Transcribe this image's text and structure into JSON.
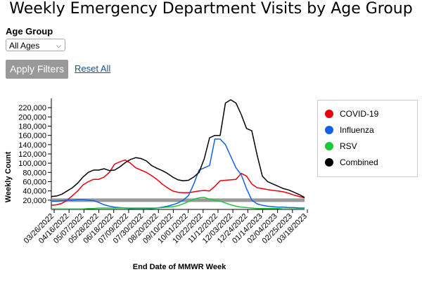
{
  "page": {
    "title": "Weekly Emergency Department Visits by Age Group"
  },
  "filters": {
    "age_group_label": "Age Group",
    "age_group_selected": "All Ages",
    "apply_label": "Apply Filters",
    "reset_label": "Reset All"
  },
  "chart_data": {
    "type": "line",
    "title": "",
    "xlabel": "End Date of MMWR Week",
    "ylabel": "Weekly Count",
    "ylim": [
      0,
      240000
    ],
    "yticks": [
      "20,000",
      "40,000",
      "60,000",
      "80,000",
      "100,000",
      "120,000",
      "140,000",
      "160,000",
      "180,000",
      "200,000",
      "220,000"
    ],
    "xtick_labels": [
      "03/26/2022",
      "04/16/2022",
      "05/07/2022",
      "05/28/2022",
      "06/18/2022",
      "07/09/2022",
      "07/30/2022",
      "08/20/2022",
      "09/10/2022",
      "10/01/2022",
      "10/22/2022",
      "11/12/2022",
      "12/03/2022",
      "12/24/2022",
      "01/14/2023",
      "02/04/2023",
      "02/25/2023",
      "03/18/2023"
    ],
    "x_start": "03/26/2022",
    "x_end": "03/25/2023",
    "reference_line": 20000,
    "legend_position": "right",
    "series": [
      {
        "name": "COVID-19",
        "color": "#e8000b",
        "values": [
          9000,
          10000,
          13000,
          20000,
          30000,
          40000,
          53000,
          60000,
          65000,
          65000,
          70000,
          80000,
          98000,
          103000,
          107000,
          100000,
          90000,
          85000,
          80000,
          73000,
          65000,
          55000,
          47000,
          40000,
          37000,
          36000,
          36000,
          38000,
          40000,
          41000,
          40000,
          50000,
          62000,
          63000,
          64000,
          65000,
          78000,
          72000,
          55000,
          47000,
          45000,
          43000,
          41000,
          40000,
          38000,
          35000,
          31000,
          28000,
          25000
        ]
      },
      {
        "name": "Influenza",
        "color": "#1360e8",
        "values": [
          18000,
          18000,
          19000,
          20000,
          20000,
          21000,
          21000,
          20000,
          19000,
          15000,
          10000,
          7000,
          5000,
          4000,
          3000,
          2000,
          1000,
          1000,
          1000,
          2000,
          3000,
          5000,
          7000,
          10000,
          14000,
          20000,
          30000,
          55000,
          85000,
          90000,
          95000,
          152000,
          152000,
          140000,
          115000,
          90000,
          75000,
          45000,
          20000,
          12000,
          9000,
          7000,
          6000,
          5000,
          5000,
          4000,
          4000,
          3000,
          3000
        ]
      },
      {
        "name": "RSV",
        "color": "#1ac938",
        "values": [
          1000,
          1000,
          1000,
          1000,
          1000,
          1000,
          1000,
          2000,
          2000,
          3000,
          3000,
          3000,
          3000,
          3000,
          3000,
          3000,
          3000,
          3000,
          3000,
          3000,
          3000,
          4000,
          5000,
          6000,
          8000,
          12000,
          17000,
          22000,
          25000,
          26000,
          22000,
          20000,
          18000,
          14000,
          10000,
          7000,
          5000,
          4000,
          3000,
          2000,
          2000,
          2000,
          2000,
          2000,
          1000,
          1000,
          1000,
          1000,
          1000
        ]
      },
      {
        "name": "Combined",
        "color": "#000000",
        "values": [
          28000,
          29000,
          33000,
          40000,
          47000,
          57000,
          70000,
          80000,
          85000,
          85000,
          88000,
          84000,
          85000,
          92000,
          101000,
          108000,
          112000,
          110000,
          105000,
          95000,
          89000,
          84000,
          78000,
          70000,
          64000,
          62000,
          63000,
          70000,
          80000,
          110000,
          155000,
          160000,
          160000,
          230000,
          237000,
          230000,
          205000,
          175000,
          170000,
          118000,
          72000,
          60000,
          55000,
          50000,
          45000,
          42000,
          37000,
          32000,
          26000
        ]
      }
    ]
  }
}
